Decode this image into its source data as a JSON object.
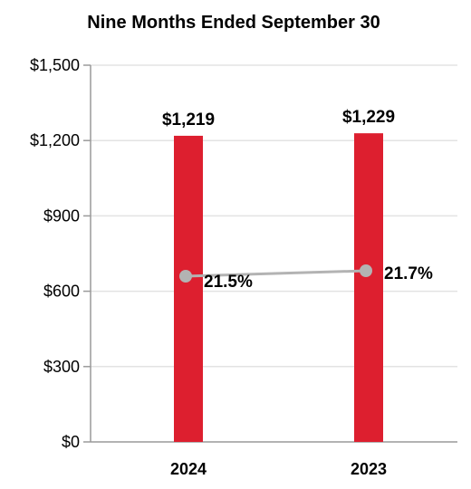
{
  "chart_data": {
    "type": "bar",
    "title": "Nine Months Ended September 30",
    "categories": [
      "2024",
      "2023"
    ],
    "ylim": [
      0,
      1500
    ],
    "yticks": [
      0,
      300,
      600,
      900,
      1200,
      1500
    ],
    "ytick_labels": [
      "$0",
      "$300",
      "$600",
      "$900",
      "$1,200",
      "$1,500"
    ],
    "grid": true,
    "series": [
      {
        "type": "bar",
        "values": [
          1219,
          1229
        ],
        "labels": [
          "$1,219",
          "$1,229"
        ],
        "color": "#dd1f2f"
      },
      {
        "type": "line",
        "values": [
          21.5,
          21.7
        ],
        "labels": [
          "21.5%",
          "21.7%"
        ],
        "color": "#b3b3b3"
      }
    ]
  }
}
